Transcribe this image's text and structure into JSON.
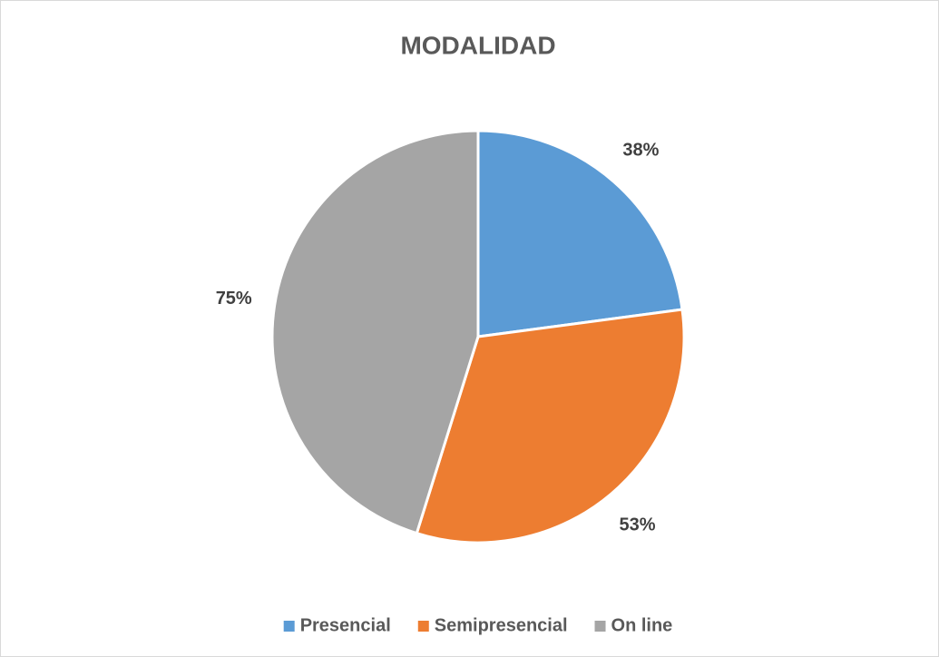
{
  "chart_data": {
    "type": "pie",
    "title": "MODALIDAD",
    "categories": [
      "Presencial",
      "Semipresencial",
      "On line"
    ],
    "values": [
      38,
      53,
      75
    ],
    "value_labels": [
      "38%",
      "53%",
      "75%"
    ],
    "colors": [
      "#5b9bd5",
      "#ed7d31",
      "#a5a5a5"
    ],
    "legend": "bottom"
  }
}
